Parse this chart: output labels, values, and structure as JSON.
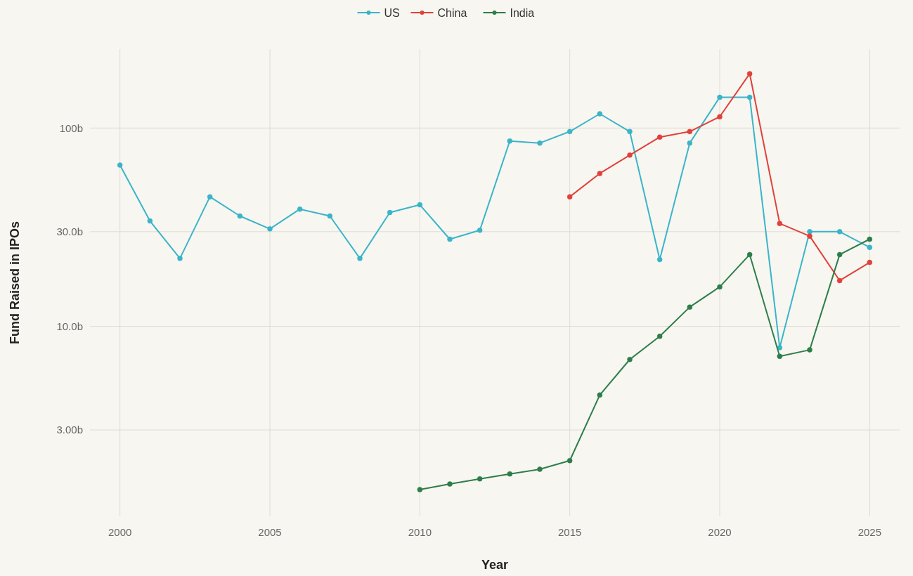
{
  "chart_data": {
    "type": "line",
    "xlabel": "Year",
    "ylabel": "Fund Raised in IPOs",
    "log": "y",
    "grid": true,
    "legend": "top",
    "marker": "circle",
    "line_style": "solid",
    "xlim": [
      1999,
      2026
    ],
    "xticks": [
      2000,
      2005,
      2010,
      2015,
      2020,
      2025
    ],
    "ylim": [
      1.1,
      250
    ],
    "yticks": [
      {
        "value": 3,
        "label": "3.00b"
      },
      {
        "value": 10,
        "label": "10.0b"
      },
      {
        "value": 30,
        "label": "30.0b"
      },
      {
        "value": 100,
        "label": "100b"
      }
    ],
    "series": [
      {
        "name": "US",
        "color": "#3bb4c8",
        "x": [
          2000,
          2001,
          2002,
          2003,
          2004,
          2005,
          2006,
          2007,
          2008,
          2009,
          2010,
          2011,
          2012,
          2013,
          2014,
          2015,
          2016,
          2017,
          2018,
          2019,
          2020,
          2021,
          2022,
          2023,
          2024,
          2025
        ],
        "values": [
          65,
          34,
          22,
          45,
          36,
          31,
          39,
          36,
          22,
          37.5,
          41,
          27.5,
          30.5,
          86,
          84,
          96,
          118,
          96,
          21.7,
          84,
          143,
          143,
          7.8,
          30,
          30,
          25
        ]
      },
      {
        "name": "China",
        "color": "#e0413a",
        "x": [
          2015,
          2016,
          2017,
          2018,
          2019,
          2020,
          2021,
          2022,
          2023,
          2024,
          2025
        ],
        "values": [
          45,
          59,
          73,
          90,
          96,
          114,
          188,
          33,
          28.5,
          17,
          21
        ]
      },
      {
        "name": "India",
        "color": "#2e7d4a",
        "x": [
          2010,
          2011,
          2012,
          2013,
          2014,
          2015,
          2016,
          2017,
          2018,
          2019,
          2020,
          2021,
          2022,
          2023,
          2024,
          2025
        ],
        "values": [
          1.5,
          1.6,
          1.7,
          1.8,
          1.9,
          2.1,
          4.5,
          6.8,
          8.9,
          12.5,
          15.8,
          23,
          7.05,
          7.6,
          23,
          27.5
        ]
      }
    ]
  }
}
